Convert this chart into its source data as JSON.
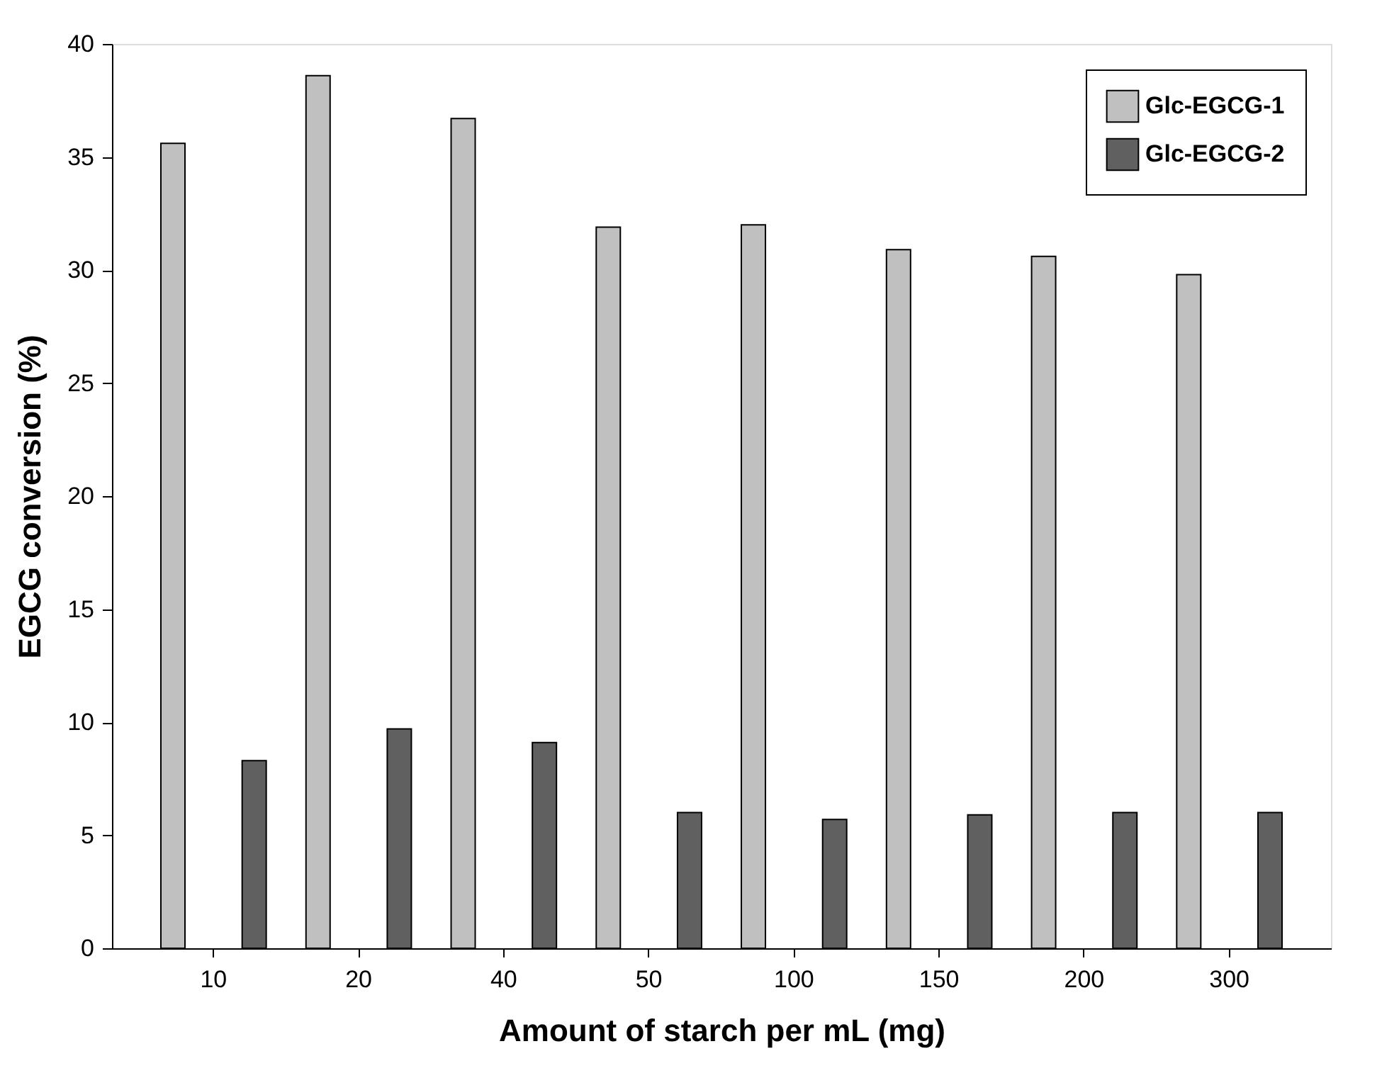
{
  "chart_data": {
    "type": "bar",
    "xlabel": "Amount of starch per mL (mg)",
    "ylabel": "EGCG conversion (%)",
    "categories": [
      "10",
      "20",
      "40",
      "50",
      "100",
      "150",
      "200",
      "300"
    ],
    "series": [
      {
        "name": "Glc-EGCG-1",
        "color": "#c0c0c0",
        "values": [
          35.6,
          38.6,
          36.7,
          31.9,
          32.0,
          30.9,
          30.6,
          29.8
        ]
      },
      {
        "name": "Glc-EGCG-2",
        "color": "#606060",
        "values": [
          8.3,
          9.7,
          9.1,
          6.0,
          5.7,
          5.9,
          6.0,
          6.0
        ]
      }
    ],
    "ylim": [
      0,
      40
    ],
    "yticks": [
      0,
      5,
      10,
      15,
      20,
      25,
      30,
      35,
      40
    ],
    "grid": false,
    "legend": "top right"
  }
}
